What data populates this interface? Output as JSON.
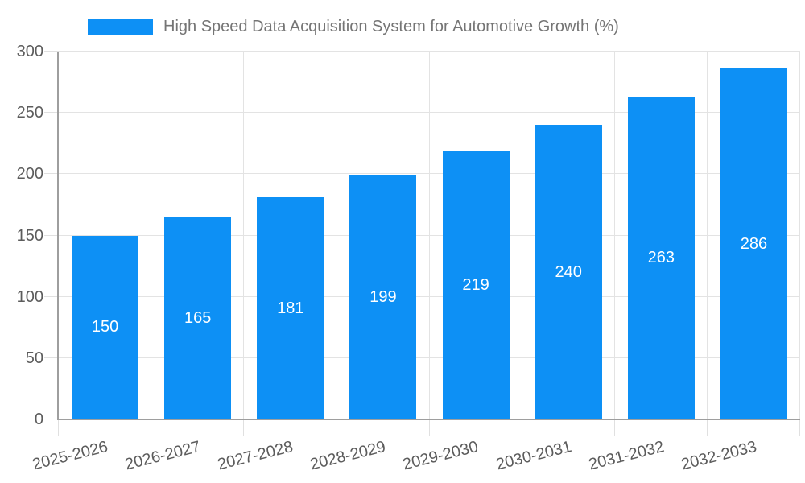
{
  "chart_data": {
    "type": "bar",
    "title": "High Speed Data Acquisition System for Automotive Growth (%)",
    "legend_position": "top-left",
    "categories": [
      "2025-2026",
      "2026-2027",
      "2027-2028",
      "2028-2029",
      "2029-2030",
      "2030-2031",
      "2031-2032",
      "2032-2033"
    ],
    "values": [
      150,
      165,
      181,
      199,
      219,
      240,
      263,
      286
    ],
    "xlabel": "",
    "ylabel": "",
    "ylim": [
      0,
      300
    ],
    "yticks": [
      0,
      50,
      100,
      150,
      200,
      250,
      300
    ],
    "grid": true,
    "colors": {
      "bar": "#0d90f5",
      "value_label": "#ffffff",
      "axis_line": "#9e9e9e",
      "gridline": "#e3e3e3",
      "tick_text": "#5c5c5c",
      "legend_text": "#757575"
    }
  }
}
